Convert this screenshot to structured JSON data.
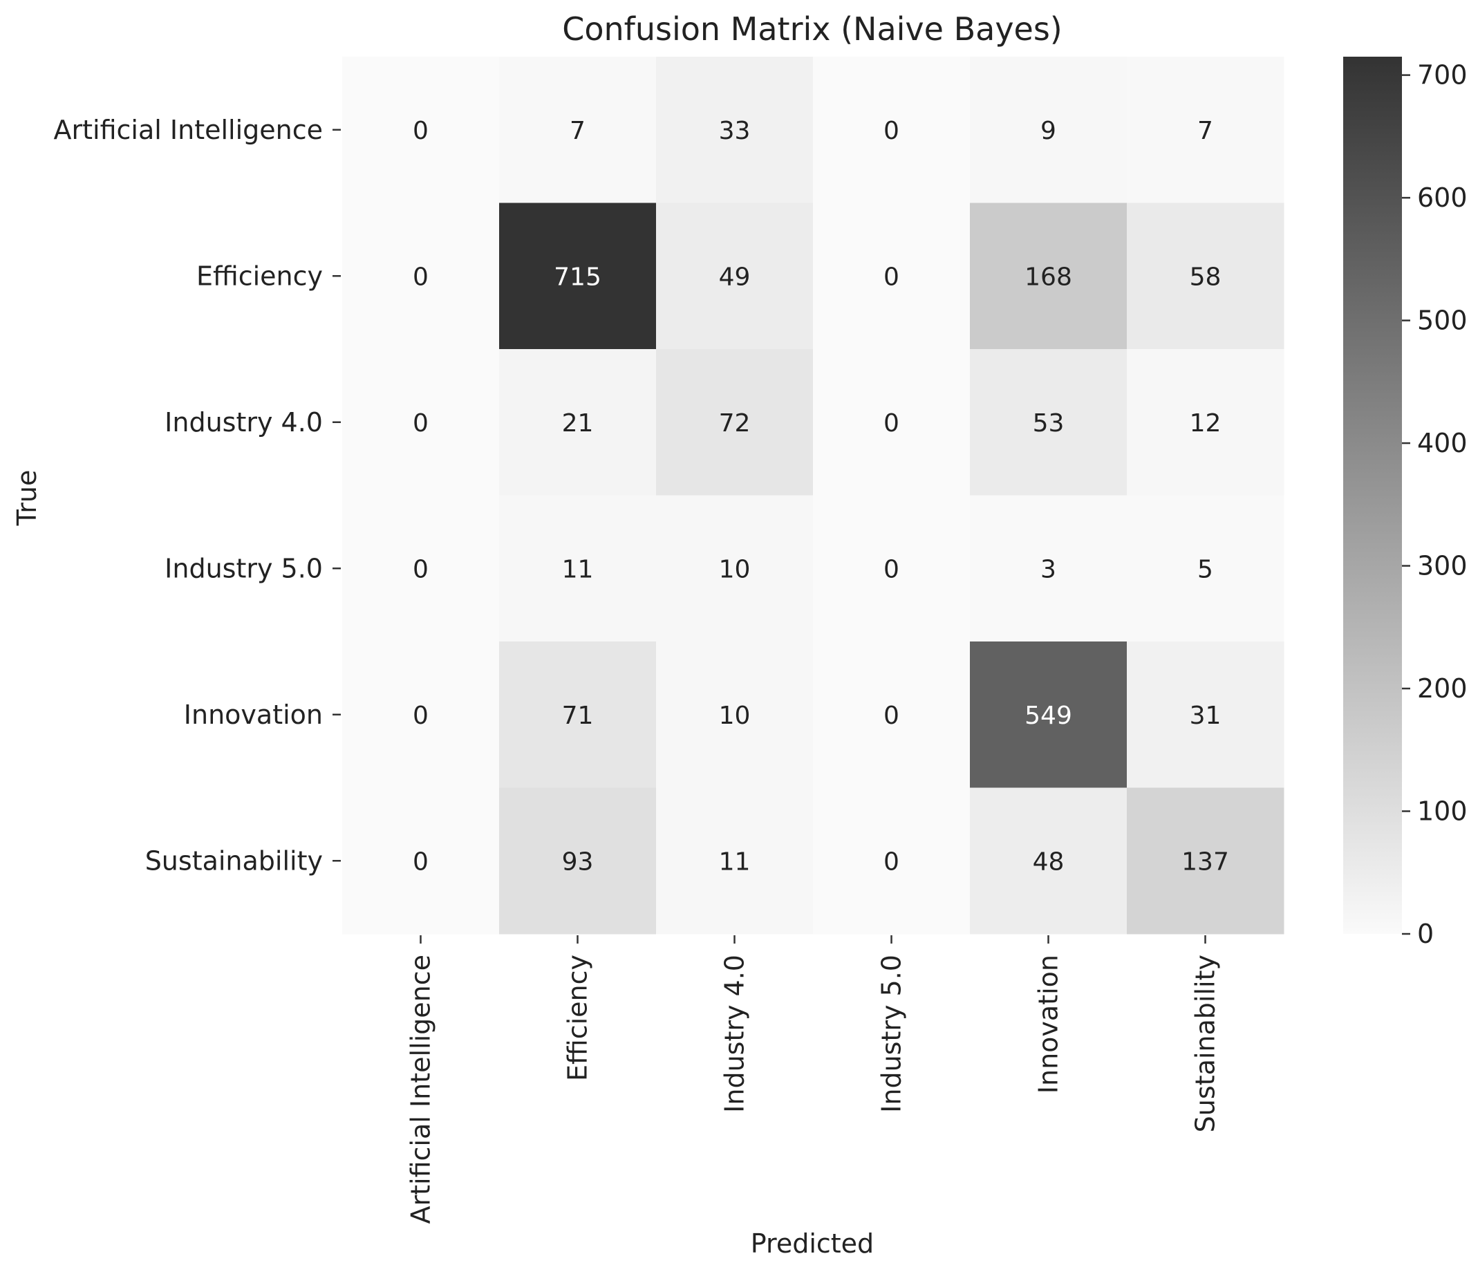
{
  "chart_data": {
    "type": "heatmap",
    "title": "Confusion Matrix (Naive Bayes)",
    "xlabel": "Predicted",
    "ylabel": "True",
    "categories": [
      "Artificial Intelligence",
      "Efficiency",
      "Industry 4.0",
      "Industry 5.0",
      "Innovation",
      "Sustainability"
    ],
    "rows": [
      {
        "label": "Artificial Intelligence",
        "values": [
          0,
          7,
          33,
          0,
          9,
          7
        ]
      },
      {
        "label": "Efficiency",
        "values": [
          0,
          715,
          49,
          0,
          168,
          58
        ]
      },
      {
        "label": "Industry 4.0",
        "values": [
          0,
          21,
          72,
          0,
          53,
          12
        ]
      },
      {
        "label": "Industry 5.0",
        "values": [
          0,
          11,
          10,
          0,
          3,
          5
        ]
      },
      {
        "label": "Innovation",
        "values": [
          0,
          71,
          10,
          0,
          549,
          31
        ]
      },
      {
        "label": "Sustainability",
        "values": [
          0,
          93,
          11,
          0,
          48,
          137
        ]
      }
    ],
    "colorbar": {
      "range": [
        0,
        715
      ],
      "ticks": [
        0,
        100,
        200,
        300,
        400,
        500,
        600,
        700
      ],
      "color_low": "#fafafa",
      "color_high": "#333333"
    }
  }
}
